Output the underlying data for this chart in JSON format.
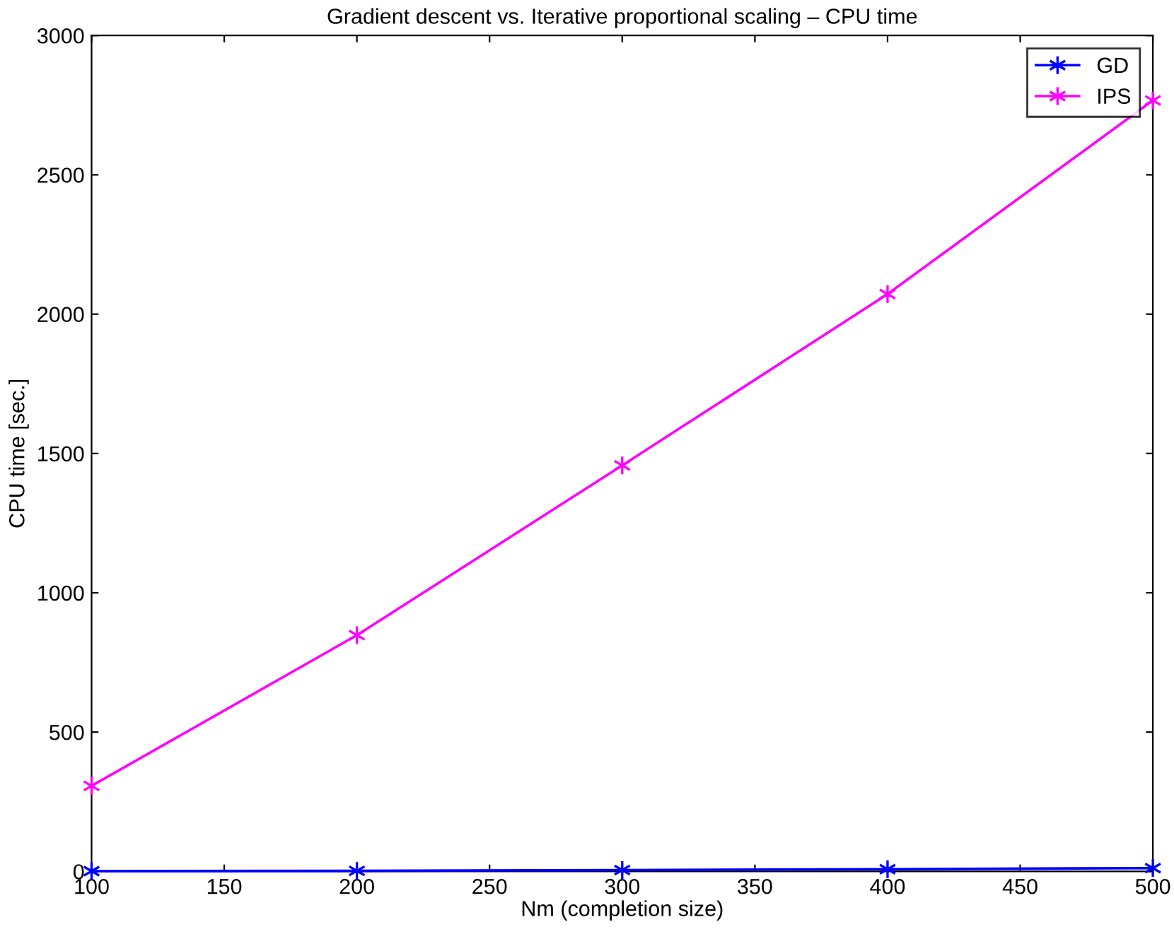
{
  "chart_data": {
    "type": "line",
    "title": "Gradient descent vs. Iterative proportional scaling – CPU time",
    "xlabel": "Nm (completion size)",
    "ylabel": "CPU time [sec.]",
    "x": [
      100,
      200,
      300,
      400,
      500
    ],
    "series": [
      {
        "name": "GD",
        "color": "#0000ff",
        "values": [
          1,
          2,
          5,
          8,
          12
        ]
      },
      {
        "name": "IPS",
        "color": "#ff00ff",
        "values": [
          307,
          848,
          1457,
          2072,
          2767
        ]
      }
    ],
    "xlim": [
      100,
      500
    ],
    "xticks": [
      100,
      150,
      200,
      250,
      300,
      350,
      400,
      450,
      500
    ],
    "ylim": [
      0,
      3000
    ],
    "yticks": [
      0,
      500,
      1000,
      1500,
      2000,
      2500,
      3000
    ],
    "grid": false,
    "legend": "top right",
    "marker": "cross",
    "line_style": "solid"
  }
}
